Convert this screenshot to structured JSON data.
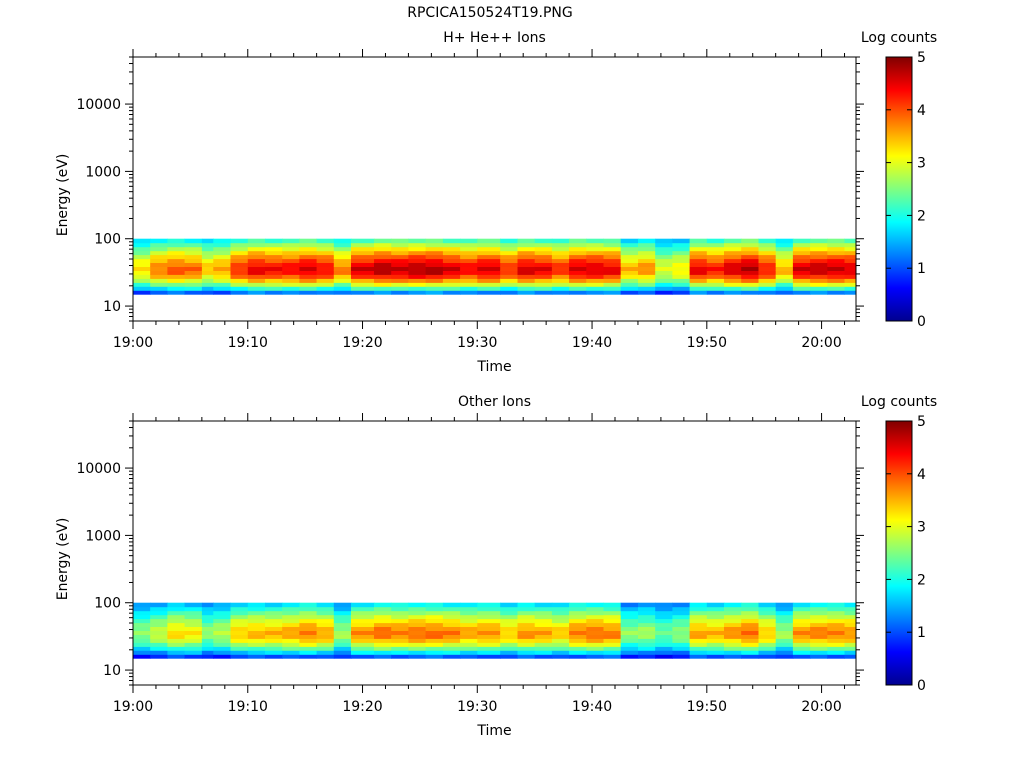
{
  "figure_title": "RPCICA150524T19.PNG",
  "chart_data": [
    {
      "type": "heatmap",
      "title": "H+ He++ Ions",
      "xlabel": "Time",
      "ylabel": "Energy (eV)",
      "colorbar_label": "Log counts",
      "x_ticks": [
        "19:00",
        "19:10",
        "19:20",
        "19:30",
        "19:40",
        "19:50",
        "20:00"
      ],
      "x_range": [
        "19:00",
        "20:03"
      ],
      "y_scale": "log",
      "y_ticks": [
        "10",
        "100",
        "1000",
        "10000"
      ],
      "y_range": [
        6,
        50000
      ],
      "z_range": [
        0,
        5
      ],
      "colorbar_ticks": [
        "0",
        "1",
        "2",
        "3",
        "4",
        "5"
      ],
      "colorscale": "jet",
      "colors": {
        "low": "#00008f",
        "mid": "#80ff80",
        "high": "#800000"
      },
      "signal_energy_range_eV": [
        15,
        100
      ],
      "peak_energy_eV": 35,
      "scan_times_min": [
        0,
        1.5,
        3,
        4.5,
        6,
        7,
        8.5,
        10,
        11.5,
        13,
        14.5,
        16,
        17.5,
        19,
        21,
        22.5,
        24,
        25.5,
        27,
        28.5,
        30,
        32,
        33.5,
        35,
        36.5,
        38,
        39.5,
        41,
        42.5,
        44,
        45.5,
        47,
        48.5,
        50,
        51.5,
        53,
        54.5,
        56,
        57.5,
        59,
        60.5,
        62
      ],
      "scan_peak_log_counts": [
        3.3,
        3.8,
        4.0,
        3.9,
        3.4,
        3.6,
        4.2,
        4.5,
        4.4,
        4.4,
        4.6,
        4.4,
        3.8,
        4.6,
        4.8,
        4.7,
        4.8,
        4.8,
        4.6,
        4.4,
        4.6,
        4.2,
        4.6,
        4.5,
        4.2,
        4.6,
        4.6,
        4.5,
        3.5,
        3.7,
        3.0,
        3.2,
        4.5,
        4.3,
        4.6,
        4.8,
        4.3,
        3.5,
        4.6,
        4.7,
        4.7,
        4.6
      ]
    },
    {
      "type": "heatmap",
      "title": "Other Ions",
      "xlabel": "Time",
      "ylabel": "Energy (eV)",
      "colorbar_label": "Log counts",
      "x_ticks": [
        "19:00",
        "19:10",
        "19:20",
        "19:30",
        "19:40",
        "19:50",
        "20:00"
      ],
      "x_range": [
        "19:00",
        "20:03"
      ],
      "y_scale": "log",
      "y_ticks": [
        "10",
        "100",
        "1000",
        "10000"
      ],
      "y_range": [
        6,
        50000
      ],
      "z_range": [
        0,
        5
      ],
      "colorbar_ticks": [
        "0",
        "1",
        "2",
        "3",
        "4",
        "5"
      ],
      "colorscale": "jet",
      "colors": {
        "low": "#00008f",
        "mid": "#80ff80",
        "high": "#800000"
      },
      "signal_energy_range_eV": [
        15,
        100
      ],
      "peak_energy_eV": 35,
      "scan_times_min": [
        0,
        1.5,
        3,
        4.5,
        6,
        7,
        8.5,
        10,
        11.5,
        13,
        14.5,
        16,
        17.5,
        19,
        21,
        22.5,
        24,
        25.5,
        27,
        28.5,
        30,
        32,
        33.5,
        35,
        36.5,
        38,
        39.5,
        41,
        42.5,
        44,
        45.5,
        47,
        48.5,
        50,
        51.5,
        53,
        54.5,
        56,
        57.5,
        59,
        60.5,
        62
      ],
      "scan_peak_log_counts": [
        2.6,
        2.9,
        3.3,
        3.2,
        2.6,
        2.8,
        3.4,
        3.5,
        3.5,
        3.6,
        3.8,
        3.6,
        2.7,
        3.7,
        3.9,
        3.8,
        3.9,
        3.9,
        3.8,
        3.6,
        3.7,
        3.4,
        3.7,
        3.6,
        3.4,
        3.8,
        3.9,
        3.8,
        2.6,
        2.7,
        2.4,
        2.6,
        3.6,
        3.5,
        3.7,
        3.9,
        3.4,
        2.7,
        3.7,
        3.8,
        3.8,
        3.7
      ]
    }
  ]
}
